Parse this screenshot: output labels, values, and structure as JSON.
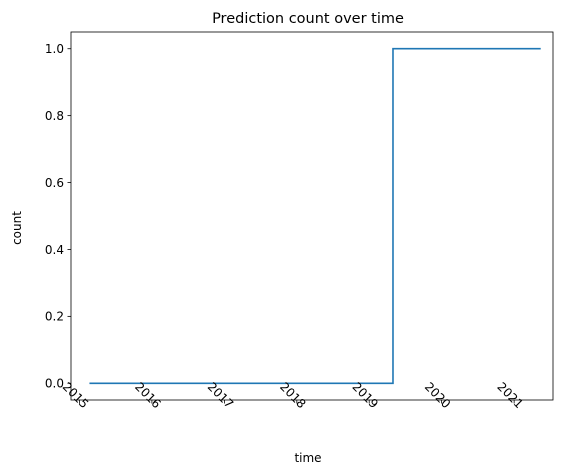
{
  "chart_data": {
    "type": "line",
    "title": "Prediction count over time",
    "xlabel": "time",
    "ylabel": "count",
    "x_ticks": [
      "2015",
      "2016",
      "2017",
      "2018",
      "2019",
      "2020",
      "2021"
    ],
    "y_ticks": [
      "0.0",
      "0.2",
      "0.4",
      "0.6",
      "0.8",
      "1.0"
    ],
    "xlim": [
      "2014-11-19",
      "2021-07-16"
    ],
    "ylim": [
      -0.05,
      1.05
    ],
    "grid": false,
    "legend": "none",
    "line_style": "step-post",
    "series": [
      {
        "color": "#1f77b4",
        "points": [
          {
            "x": "2015-02-20",
            "y": 0
          },
          {
            "x": "2019-05-01",
            "y": 0
          },
          {
            "x": "2019-05-01",
            "y": 1
          },
          {
            "x": "2021-05-15",
            "y": 1
          }
        ]
      }
    ]
  }
}
